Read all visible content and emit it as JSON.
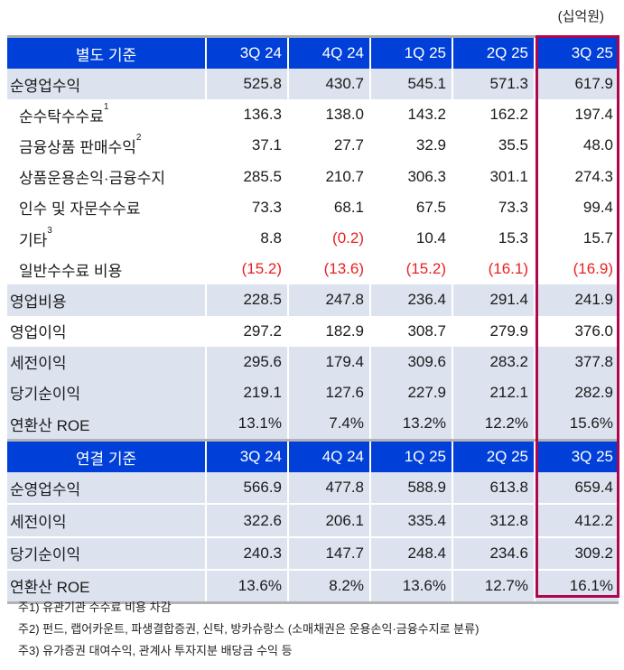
{
  "unit_label": "(십억원)",
  "columns": [
    "3Q 24",
    "4Q 24",
    "1Q 25",
    "2Q 25",
    "3Q 25"
  ],
  "highlight_color": "#b0064e",
  "header_color": "#0040d8",
  "negative_color": "#ea2020",
  "separate": {
    "title": "별도 기준",
    "rows": [
      {
        "label": "순영업수익",
        "sup": "",
        "values": [
          "525.8",
          "430.7",
          "545.1",
          "571.3",
          "617.9"
        ]
      },
      {
        "label": "순수탁수수료",
        "sup": "1",
        "values": [
          "136.3",
          "138.0",
          "143.2",
          "162.2",
          "197.4"
        ]
      },
      {
        "label": "금융상품 판매수익",
        "sup": "2",
        "values": [
          "37.1",
          "27.7",
          "32.9",
          "35.5",
          "48.0"
        ]
      },
      {
        "label": "상품운용손익·금융수지",
        "sup": "",
        "values": [
          "285.5",
          "210.7",
          "306.3",
          "301.1",
          "274.3"
        ]
      },
      {
        "label": "인수 및 자문수수료",
        "sup": "",
        "values": [
          "73.3",
          "68.1",
          "67.5",
          "73.3",
          "99.4"
        ]
      },
      {
        "label": "기타",
        "sup": "3",
        "values": [
          "8.8",
          "(0.2)",
          "10.4",
          "15.3",
          "15.7"
        ]
      },
      {
        "label": "일반수수료 비용",
        "sup": "",
        "values": [
          "(15.2)",
          "(13.6)",
          "(15.2)",
          "(16.1)",
          "(16.9)"
        ]
      },
      {
        "label": "영업비용",
        "sup": "",
        "values": [
          "228.5",
          "247.8",
          "236.4",
          "291.4",
          "241.9"
        ]
      },
      {
        "label": "영업이익",
        "sup": "",
        "values": [
          "297.2",
          "182.9",
          "308.7",
          "279.9",
          "376.0"
        ]
      },
      {
        "label": "세전이익",
        "sup": "",
        "values": [
          "295.6",
          "179.4",
          "309.6",
          "283.2",
          "377.8"
        ]
      },
      {
        "label": "당기순이익",
        "sup": "",
        "values": [
          "219.1",
          "127.6",
          "227.9",
          "212.1",
          "282.9"
        ]
      },
      {
        "label": "연환산 ROE",
        "sup": "",
        "values": [
          "13.1%",
          "7.4%",
          "13.2%",
          "12.2%",
          "15.6%"
        ]
      }
    ]
  },
  "consolidated": {
    "title": "연결 기준",
    "rows": [
      {
        "label": "순영업수익",
        "values": [
          "566.9",
          "477.8",
          "588.9",
          "613.8",
          "659.4"
        ]
      },
      {
        "label": "세전이익",
        "values": [
          "322.6",
          "206.1",
          "335.4",
          "312.8",
          "412.2"
        ]
      },
      {
        "label": "당기순이익",
        "values": [
          "240.3",
          "147.7",
          "248.4",
          "234.6",
          "309.2"
        ]
      },
      {
        "label": "연환산 ROE",
        "values": [
          "13.6%",
          "8.2%",
          "13.6%",
          "12.7%",
          "16.1%"
        ]
      }
    ]
  },
  "notes": [
    "주1) 유관기관 수수료 비용 차감",
    "주2) 펀드, 랩어카운트, 파생결합증권, 신탁, 방카슈랑스 (소매채권은 운용손익·금융수지로 분류)",
    "주3) 유가증권 대여수익, 관계사 투자지분 배당금 수익 등"
  ]
}
